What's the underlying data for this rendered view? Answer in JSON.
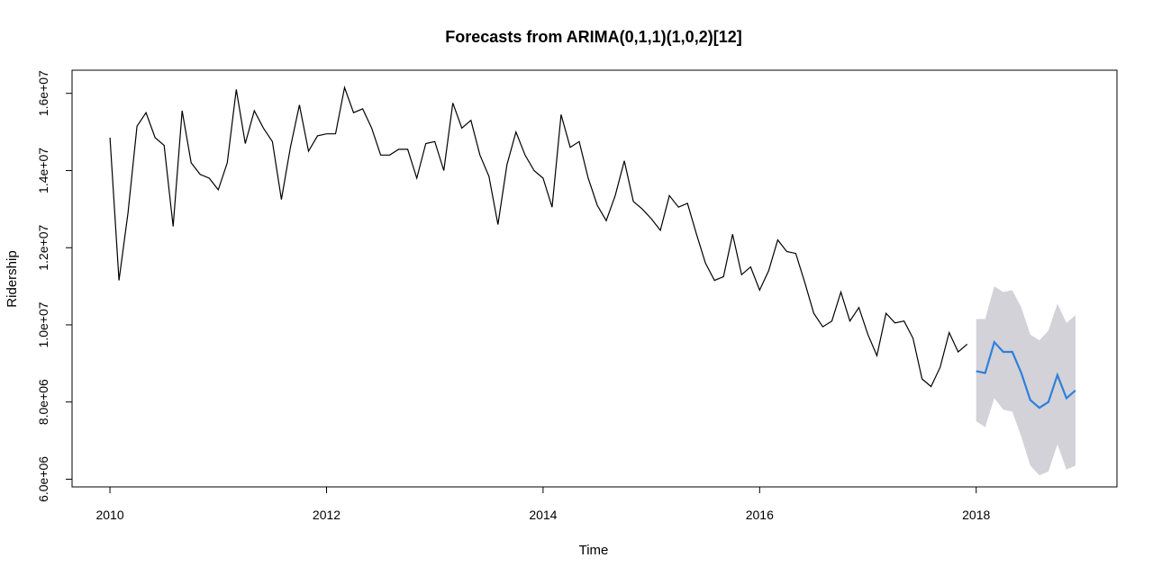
{
  "chart_data": {
    "type": "line",
    "title": "Forecasts from ARIMA(0,1,1)(1,0,2)[12]",
    "xlabel": "Time",
    "ylabel": "Ridership",
    "xlim": [
      2009.65,
      2019.3
    ],
    "ylim": [
      5800000,
      16600000
    ],
    "x_ticks": [
      2010,
      2012,
      2014,
      2016,
      2018
    ],
    "x_tick_labels": [
      "2010",
      "2012",
      "2014",
      "2016",
      "2018"
    ],
    "y_ticks": [
      6000000,
      8000000,
      10000000,
      12000000,
      14000000,
      16000000
    ],
    "y_tick_labels": [
      "6.0e+06",
      "8.0e+06",
      "1.0e+07",
      "1.2e+07",
      "1.4e+07",
      "1.6e+07"
    ],
    "grid": false,
    "series": [
      {
        "role": "observed",
        "color": "#000000",
        "x_start": 2010,
        "frequency": 12,
        "values": [
          14850000,
          11150000,
          12900000,
          15150000,
          15500000,
          14850000,
          14650000,
          12550000,
          15550000,
          14200000,
          13900000,
          13800000,
          13500000,
          14200000,
          16100000,
          14700000,
          15550000,
          15100000,
          14750000,
          13250000,
          14600000,
          15700000,
          14500000,
          14900000,
          14950000,
          14950000,
          16150000,
          15500000,
          15600000,
          15100000,
          14400000,
          14400000,
          14550000,
          14550000,
          13800000,
          14700000,
          14750000,
          14000000,
          15750000,
          15100000,
          15300000,
          14400000,
          13850000,
          12600000,
          14150000,
          15000000,
          14400000,
          14000000,
          13800000,
          13050000,
          15450000,
          14600000,
          14750000,
          13800000,
          13100000,
          12700000,
          13350000,
          14250000,
          13200000,
          13000000,
          12750000,
          12450000,
          13350000,
          13050000,
          13150000,
          12350000,
          11600000,
          11150000,
          11250000,
          12350000,
          11300000,
          11500000,
          10900000,
          11400000,
          12200000,
          11900000,
          11850000,
          11100000,
          10300000,
          9950000,
          10100000,
          10850000,
          10100000,
          10450000,
          9750000,
          9200000,
          10300000,
          10050000,
          10100000,
          9650000,
          8600000,
          8400000,
          8900000,
          9800000,
          9300000,
          9500000
        ]
      },
      {
        "role": "forecast",
        "color": "#2f7fdb",
        "band_color": "#d2d2d8",
        "x_start": 2018,
        "frequency": 12,
        "values": [
          8800000,
          8750000,
          9550000,
          9300000,
          9300000,
          8750000,
          8050000,
          7850000,
          8000000,
          8700000,
          8100000,
          8300000
        ],
        "lower": [
          7500000,
          7350000,
          8100000,
          7800000,
          7750000,
          7100000,
          6350000,
          6100000,
          6200000,
          6900000,
          6250000,
          6350000
        ],
        "upper": [
          10150000,
          10150000,
          11000000,
          10850000,
          10900000,
          10450000,
          9750000,
          9600000,
          9850000,
          10550000,
          10050000,
          10250000
        ]
      }
    ]
  }
}
